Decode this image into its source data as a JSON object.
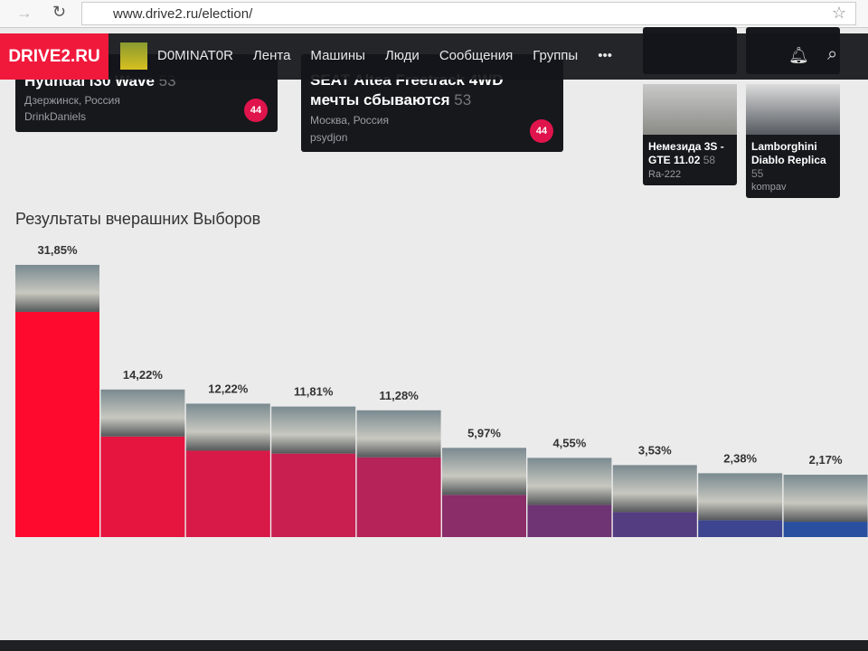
{
  "browser": {
    "url": "www.drive2.ru/election/"
  },
  "nav": {
    "logo": "DRIVE2.RU",
    "user": "D0MINAT0R",
    "items": [
      "Лента",
      "Машины",
      "Люди",
      "Сообщения",
      "Группы"
    ]
  },
  "cards": [
    {
      "title": "Hyundai i30 Wave",
      "rating": "53",
      "location": "Дзержинск, Россия",
      "author": "DrinkDaniels",
      "badge": "44"
    },
    {
      "title": "SEAT Altea Freetrack 4WD мечты сбываются",
      "rating": "53",
      "location": "Москва, Россия",
      "author": "psydjon",
      "badge": "44"
    }
  ],
  "small_cards": [
    {
      "title": "Немезида 3S - GTE 11.02",
      "rating": "58",
      "author": "Ra-222"
    },
    {
      "title": "Lamborghini Diablo Replica",
      "rating": "55",
      "author": "kompav"
    }
  ],
  "chart_data": {
    "type": "bar",
    "title": "Результаты вчерашних Выборов",
    "values": [
      31.85,
      14.22,
      12.22,
      11.81,
      11.28,
      5.97,
      4.55,
      3.53,
      2.38,
      2.17
    ],
    "value_labels": [
      "31,85%",
      "14,22%",
      "12,22%",
      "11,81%",
      "11,28%",
      "5,97%",
      "4,55%",
      "3,53%",
      "2,38%",
      "2,17%"
    ],
    "colors": [
      "#ff0a2f",
      "#e61540",
      "#d81a48",
      "#c91e50",
      "#b52358",
      "#8a2d68",
      "#6e3474",
      "#553d82",
      "#3d4590",
      "#2a4fa0"
    ]
  }
}
